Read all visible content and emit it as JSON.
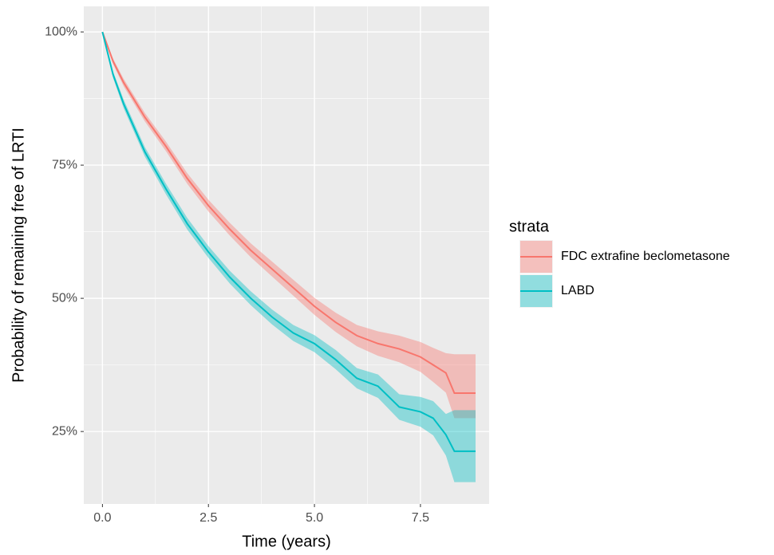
{
  "chart_data": {
    "type": "line",
    "x_label": "Time (years)",
    "y_label": "Probability of remaining free of LRTI",
    "legend_title": "strata",
    "legend": "right",
    "grid": true,
    "xlim": [
      -0.44,
      9.12
    ],
    "ylim": [
      11.4,
      104.8
    ],
    "xticks": [
      {
        "value": 0,
        "label": "0.0"
      },
      2.5,
      {
        "value": 5,
        "label": "5.0"
      },
      7.5
    ],
    "yticks": [
      {
        "value": 25,
        "label": "25%"
      },
      {
        "value": 50,
        "label": "50%"
      },
      {
        "value": 75,
        "label": "75%"
      },
      {
        "value": 100,
        "label": "100%"
      }
    ],
    "x": [
      0,
      0.25,
      0.5,
      1,
      1.5,
      2,
      2.5,
      3,
      3.5,
      4,
      4.5,
      5,
      5.5,
      6,
      6.5,
      7,
      7.5,
      7.8,
      8.1,
      8.3,
      8.8
    ],
    "series": [
      {
        "name": "FDC extrafine beclometasone",
        "color": "#F8766D",
        "values": [
          100,
          94.5,
          90.5,
          84,
          78.5,
          72.5,
          67.4,
          63,
          59,
          55.5,
          52,
          48.5,
          45.5,
          43,
          41.5,
          40.5,
          39,
          37.5,
          36,
          32.2,
          32.2
        ],
        "lower": [
          100,
          94,
          89.8,
          83.2,
          77.6,
          71.5,
          66.3,
          61.8,
          57.7,
          54.1,
          50.5,
          46.9,
          43.7,
          41,
          39.2,
          38,
          36.2,
          34.3,
          32.3,
          27.5,
          27.5
        ],
        "upper": [
          100,
          95,
          91.2,
          84.8,
          79.4,
          73.5,
          68.5,
          64.2,
          60.3,
          56.9,
          53.5,
          50.1,
          47.3,
          45,
          43.8,
          43,
          41.8,
          40.7,
          39.7,
          39.5,
          39.5
        ]
      },
      {
        "name": "LABD",
        "color": "#00BFC4",
        "values": [
          100,
          92,
          86.5,
          77.5,
          70.5,
          64,
          58.7,
          54,
          50,
          46.5,
          43.5,
          41.5,
          38.5,
          35,
          33.5,
          29.6,
          28.7,
          27.5,
          24.4,
          21.3,
          21.3
        ],
        "lower": [
          100,
          91.4,
          85.7,
          76.6,
          69.5,
          62.9,
          57.6,
          52.8,
          48.7,
          45.1,
          42,
          39.9,
          36.7,
          33.1,
          31.3,
          27.2,
          25.9,
          24.3,
          20.5,
          15.5,
          15.5
        ],
        "upper": [
          100,
          92.6,
          87.3,
          78.4,
          71.5,
          65.1,
          59.8,
          55.2,
          51.3,
          47.9,
          45,
          43.1,
          40.3,
          36.9,
          35.7,
          32,
          31.5,
          30.7,
          28.3,
          29,
          29
        ]
      }
    ]
  }
}
